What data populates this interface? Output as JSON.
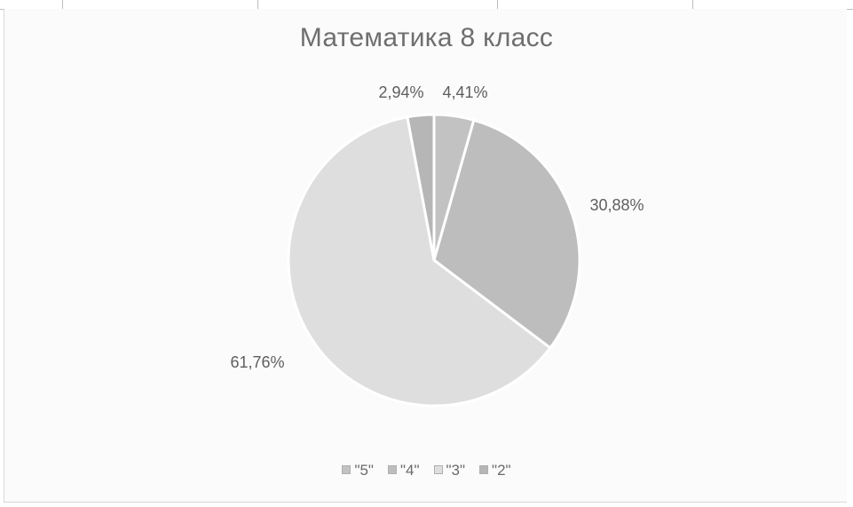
{
  "chart_data": {
    "type": "pie",
    "title": "Математика 8 класс",
    "categories": [
      "\"5\"",
      "\"4\"",
      "\"3\"",
      "\"2\""
    ],
    "values": [
      4.41,
      30.88,
      61.76,
      2.94
    ],
    "data_labels": [
      "4,41%",
      "30,88%",
      "61,76%",
      "2,94%"
    ],
    "colors": [
      "#c2c2c2",
      "#bdbdbd",
      "#dedede",
      "#b6b6b6"
    ],
    "legend_placement": "bottom"
  }
}
